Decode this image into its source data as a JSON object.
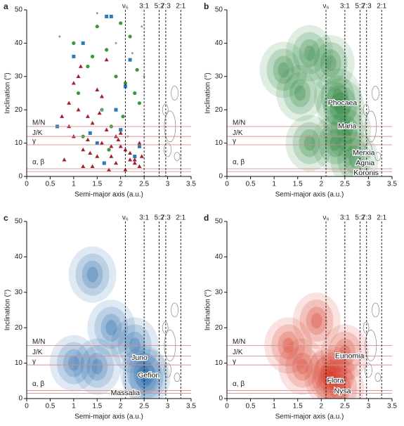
{
  "chart_data": [
    {
      "type": "scatter",
      "panel": "a",
      "xlabel": "Semi-major axis (a.u.)",
      "ylabel": "Inclination (°)",
      "xlim": [
        0,
        3.5
      ],
      "xticks": [
        0,
        0.5,
        1,
        1.5,
        2,
        2.5,
        3,
        3.5
      ],
      "ylim": [
        0,
        50
      ],
      "yticks": [
        0,
        10,
        20,
        30,
        40,
        50
      ],
      "resonances": {
        "labels": [
          "ν₆",
          "3:1",
          "5:2",
          "7:3",
          "2:1"
        ],
        "values": [
          2.1,
          2.5,
          2.82,
          2.96,
          3.28
        ]
      },
      "families": {
        "labels": [
          "M/N",
          "J/K",
          "γ",
          "α, β"
        ],
        "values": [
          15,
          12,
          9.5,
          2.3
        ]
      },
      "series": [
        {
          "marker": "triangle",
          "color": "#a3202a",
          "x": [
            0.8,
            0.9,
            1.0,
            1.1,
            1.2,
            1.3,
            1.4,
            1.5,
            1.6,
            1.7,
            1.8,
            1.9,
            2.0,
            2.1,
            2.2,
            2.3,
            2.4,
            0.9,
            1.1,
            1.3,
            1.5,
            1.7,
            1.9,
            2.1,
            2.3,
            1.0,
            1.2,
            1.4,
            1.6,
            1.8,
            2.0,
            2.2,
            2.4,
            1.15,
            1.35,
            1.55,
            1.75,
            1.95,
            0.75,
            2.45
          ],
          "values": [
            5,
            22,
            12,
            30,
            8,
            18,
            3,
            26,
            10,
            14,
            6,
            4,
            9,
            2,
            7,
            5,
            3,
            15,
            20,
            11,
            6,
            35,
            12,
            8,
            4,
            28,
            3,
            16,
            24,
            9,
            13,
            5,
            10,
            33,
            7,
            19,
            2,
            11,
            18,
            6
          ]
        },
        {
          "marker": "circle",
          "color": "#3a9a3a",
          "x": [
            1.0,
            1.3,
            1.5,
            1.7,
            1.9,
            2.1,
            2.3,
            1.2,
            1.6,
            2.0,
            2.4,
            1.4,
            1.8,
            2.2,
            1.1,
            1.75,
            2.05,
            2.35
          ],
          "values": [
            40,
            33,
            45,
            38,
            30,
            28,
            25,
            12,
            20,
            46,
            22,
            36,
            15,
            42,
            25,
            8,
            18,
            32
          ]
        },
        {
          "marker": "square",
          "color": "#2a7ab8",
          "x": [
            0.65,
            1.2,
            1.5,
            1.8,
            2.0,
            2.2,
            2.4,
            1.0,
            1.65,
            2.1,
            1.35,
            1.9,
            2.3,
            1.7
          ],
          "values": [
            15,
            40,
            10,
            48,
            14,
            35,
            9,
            36,
            4,
            27,
            13,
            20,
            6,
            48
          ]
        },
        {
          "marker": "circle",
          "color": "#999999",
          "x": [
            1.5,
            1.9,
            2.25,
            2.5,
            0.7,
            1.6,
            2.15,
            2.45
          ],
          "values": [
            49,
            40,
            37,
            30,
            42,
            20,
            12,
            45
          ]
        }
      ]
    },
    {
      "type": "density",
      "panel": "b",
      "xlabel": "Semi-major axis (a.u.)",
      "ylabel": "Inclination (°)",
      "xlim": [
        0,
        3.5
      ],
      "xticks": [
        0,
        0.5,
        1,
        1.5,
        2,
        2.5,
        3,
        3.5
      ],
      "ylim": [
        0,
        50
      ],
      "yticks": [
        0,
        10,
        20,
        30,
        40,
        50
      ],
      "resonances": {
        "labels": [
          "ν₆",
          "3:1",
          "5:2",
          "7:3",
          "2:1"
        ],
        "values": [
          2.1,
          2.5,
          2.82,
          2.96,
          3.28
        ]
      },
      "families": {
        "labels": [
          "M/N",
          "J/K",
          "γ",
          "α, β"
        ],
        "values": [
          15,
          12,
          9.5,
          2.3
        ]
      },
      "color": "#1e7d32",
      "peaks": {
        "x": [
          1.2,
          1.75,
          1.55,
          2.2,
          2.4,
          2.55,
          1.75,
          2.3,
          2.7,
          2.35
        ],
        "values": [
          32,
          37,
          25,
          34,
          21,
          14,
          10,
          10,
          5,
          24
        ]
      },
      "annotations": [
        "Phocaea",
        "Maria",
        "Merxia",
        "Agnia",
        "Koronis"
      ]
    },
    {
      "type": "density",
      "panel": "c",
      "xlabel": "Semi-major axis (a.u.)",
      "ylabel": "Inclination (°)",
      "xlim": [
        0,
        3.5
      ],
      "xticks": [
        0,
        0.5,
        1,
        1.5,
        2,
        2.5,
        3,
        3.5
      ],
      "ylim": [
        0,
        50
      ],
      "yticks": [
        0,
        10,
        20,
        30,
        40,
        50
      ],
      "resonances": {
        "labels": [
          "ν₆",
          "3:1",
          "5:2",
          "7:3",
          "2:1"
        ],
        "values": [
          2.1,
          2.5,
          2.82,
          2.96,
          3.28
        ]
      },
      "families": {
        "labels": [
          "M/N",
          "J/K",
          "γ",
          "α, β"
        ],
        "values": [
          15,
          12,
          9.5,
          2.3
        ]
      },
      "color": "#1f62a8",
      "peaks": {
        "x": [
          2.5,
          2.55,
          1.5,
          1.8,
          2.3,
          1.0,
          1.4
        ],
        "values": [
          7,
          6,
          9,
          20,
          15,
          10,
          35
        ]
      },
      "annotations": [
        "Juno",
        "Gefion",
        "Massalia"
      ]
    },
    {
      "type": "density",
      "panel": "d",
      "xlabel": "Semi-major axis (a.u.)",
      "ylabel": "Inclination (°)",
      "xlim": [
        0,
        3.5
      ],
      "xticks": [
        0,
        0.5,
        1,
        1.5,
        2,
        2.5,
        3,
        3.5
      ],
      "ylim": [
        0,
        50
      ],
      "yticks": [
        0,
        10,
        20,
        30,
        40,
        50
      ],
      "resonances": {
        "labels": [
          "ν₆",
          "3:1",
          "5:2",
          "7:3",
          "2:1"
        ],
        "values": [
          2.1,
          2.5,
          2.82,
          2.96,
          3.28
        ]
      },
      "families": {
        "labels": [
          "M/N",
          "J/K",
          "γ",
          "α, β"
        ],
        "values": [
          15,
          12,
          9.5,
          2.3
        ]
      },
      "color": "#d7301f",
      "peaks": {
        "x": [
          2.2,
          2.15,
          1.6,
          1.3,
          1.9,
          2.5,
          2.4
        ],
        "values": [
          7,
          6,
          9,
          15,
          22,
          13,
          3
        ]
      },
      "annotations": [
        "Eunomia",
        "Flora",
        "Nysa"
      ]
    }
  ]
}
